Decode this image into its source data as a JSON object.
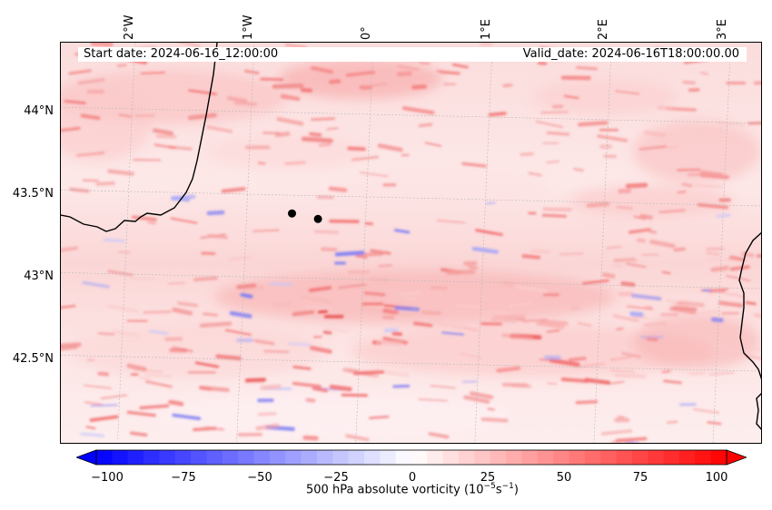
{
  "header": {
    "start_date": "Start date: 2024-06-16_12:00:00",
    "valid_date": "Valid_date: 2024-06-16T18:00:00.00"
  },
  "map": {
    "longitude_labels": [
      "2°W",
      "1°W",
      "0°",
      "1°E",
      "2°E",
      "3°E"
    ],
    "latitude_labels": [
      "44°N",
      "43.5°N",
      "43°N",
      "42.5°N"
    ],
    "markers": [
      {
        "lon": -0.62,
        "lat": 43.39
      },
      {
        "lon": -0.4,
        "lat": 43.36
      }
    ],
    "field": "500 hPa absolute vorticity"
  },
  "colorbar": {
    "ticks": [
      "−100",
      "−75",
      "−50",
      "−25",
      "0",
      "25",
      "50",
      "75",
      "100"
    ],
    "label_prefix": "500 hPa absolute vorticity (10",
    "label_exp1": "−5",
    "label_mid": "s",
    "label_exp2": "−1",
    "label_suffix": ")",
    "min": -100,
    "max": 100,
    "colormap": "bwr",
    "extend": "both"
  },
  "colors": {
    "negative": "#0000ff",
    "neutral": "#ffffff",
    "positive": "#ff0000",
    "coastline": "#000000",
    "marker": "#000000"
  }
}
